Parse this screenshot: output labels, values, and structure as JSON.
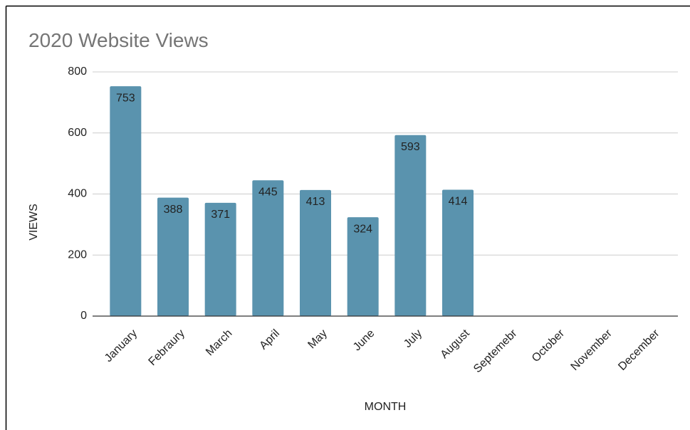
{
  "chart_data": {
    "type": "bar",
    "title": "2020 Website Views",
    "x_label": "MONTH",
    "y_label": "VIEWS",
    "categories": [
      "January",
      "Febraury",
      "March",
      "April",
      "May",
      "June",
      "July",
      "August",
      "Septemebr",
      "October",
      "November",
      "December"
    ],
    "values": [
      753,
      388,
      371,
      445,
      413,
      324,
      593,
      414,
      null,
      null,
      null,
      null
    ],
    "color": "#5a93ae",
    "ylim": [
      0,
      800
    ],
    "yticks": [
      0,
      200,
      400,
      600,
      800
    ],
    "grid": true
  }
}
